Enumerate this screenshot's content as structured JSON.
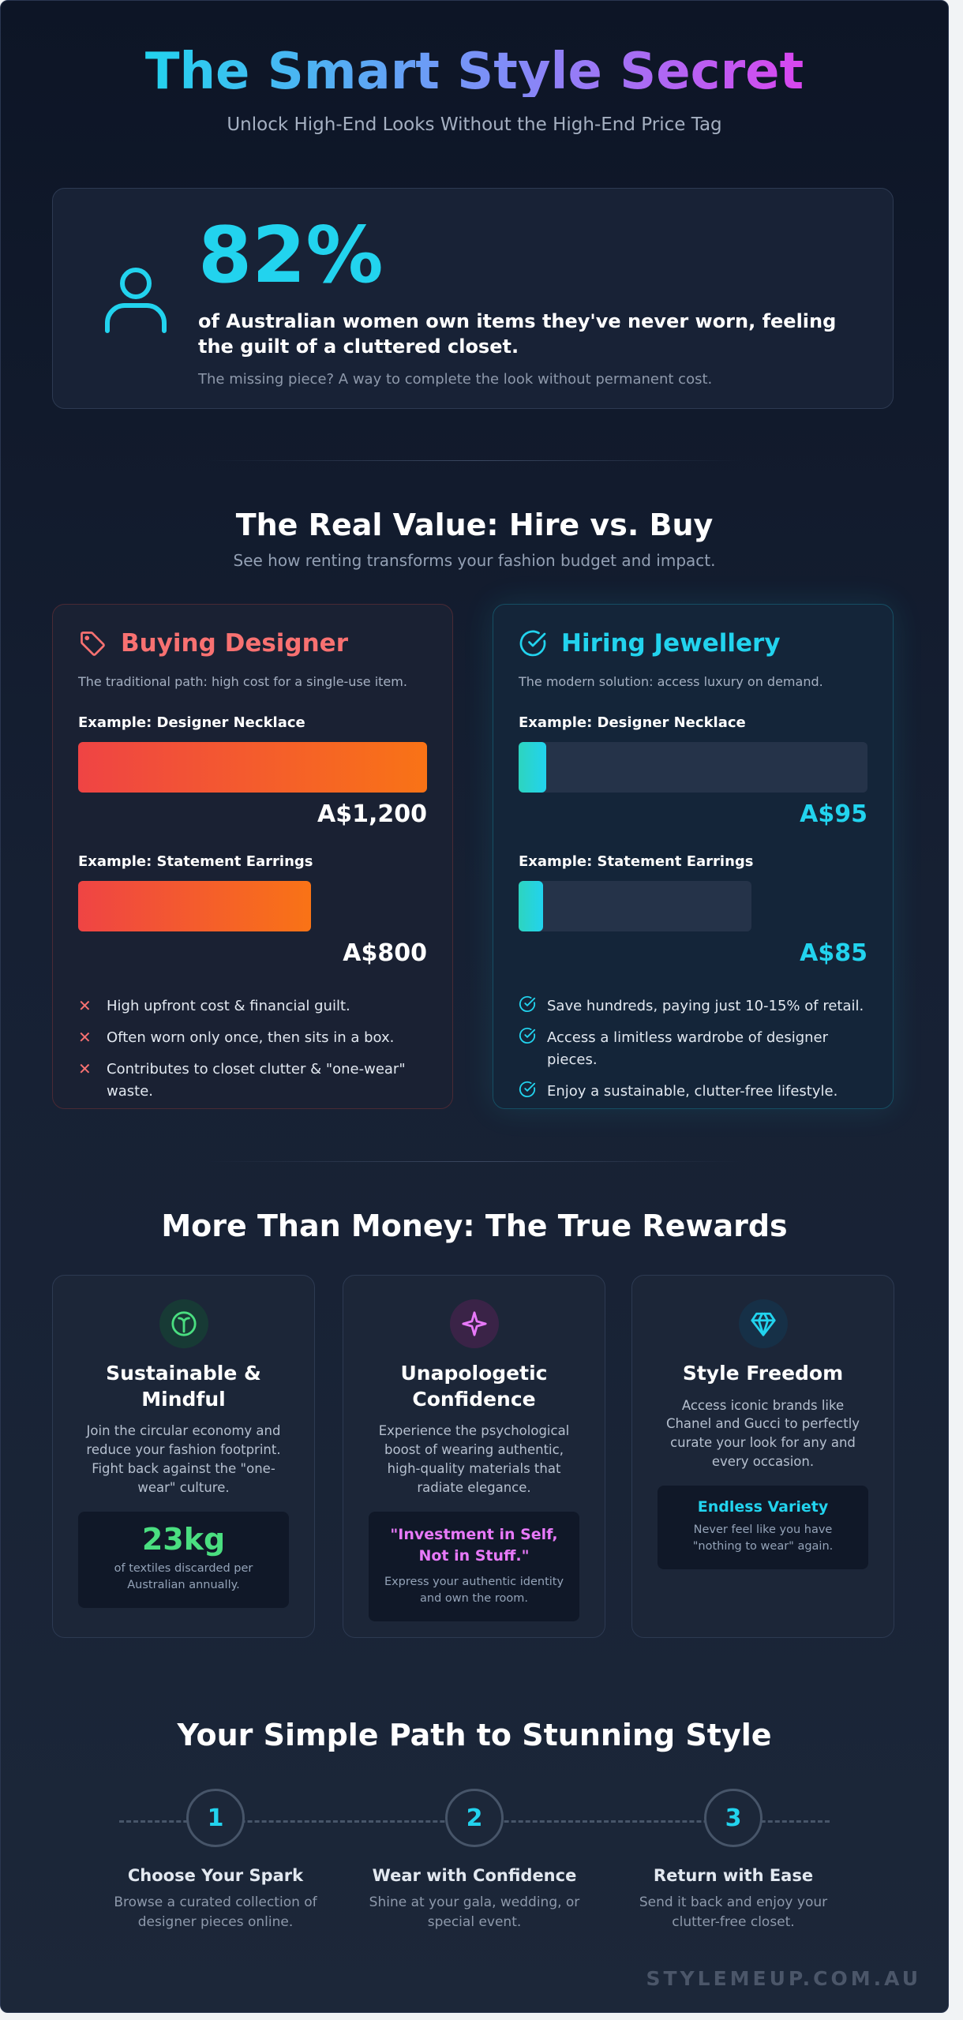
{
  "header": {
    "title": "The Smart Style Secret",
    "subtitle": "Unlock High-End Looks Without the High-End Price Tag"
  },
  "stat": {
    "icon": "person-icon",
    "number": "82%",
    "description": "of Australian women own items they've never worn, feeling the guilt of a cluttered closet.",
    "note": "The missing piece? A way to complete the look without permanent cost."
  },
  "comparison": {
    "title": "The Real Value: Hire vs. Buy",
    "subtitle": "See how renting transforms your fashion budget and impact.",
    "buy": {
      "icon": "tag-icon",
      "title": "Buying Designer",
      "description": "The traditional path: high cost for a single-use item.",
      "items": [
        {
          "label": "Example: Designer Necklace",
          "price": "A$1,200",
          "fill": 1.0,
          "track": 1.0
        },
        {
          "label": "Example: Statement Earrings",
          "price": "A$800",
          "fill": 0.667,
          "track": 0.667
        }
      ],
      "points": [
        "High upfront cost & financial guilt.",
        "Often worn only once, then sits in a box.",
        "Contributes to closet clutter & \"one-wear\" waste."
      ],
      "point_icon": "x-icon",
      "color": "#f87171"
    },
    "hire": {
      "icon": "check-circle-icon",
      "title": "Hiring Jewellery",
      "description": "The modern solution: access luxury on demand.",
      "items": [
        {
          "label": "Example: Designer Necklace",
          "price": "A$95",
          "fill": 0.079,
          "track": 1.0
        },
        {
          "label": "Example: Statement Earrings",
          "price": "A$85",
          "fill": 0.071,
          "track": 0.667
        }
      ],
      "points": [
        "Save hundreds, paying just 10-15% of retail.",
        "Access a limitless wardrobe of designer pieces.",
        "Enjoy a sustainable, clutter-free lifestyle."
      ],
      "point_icon": "check-circle-icon",
      "color": "#22d3ee"
    }
  },
  "rewards": {
    "title": "More Than Money: The True Rewards",
    "cards": [
      {
        "icon": "sprout-icon",
        "title": "Sustainable & Mindful",
        "description": "Join the circular economy and reduce your fashion footprint. Fight back against the \"one-wear\" culture.",
        "highlight": "23kg",
        "note": "of textiles discarded per Australian annually."
      },
      {
        "icon": "sparkle-icon",
        "title": "Unapologetic Confidence",
        "description": "Experience the psychological boost of wearing authentic, high-quality materials that radiate elegance.",
        "highlight": "\"Investment in Self, Not in Stuff.\"",
        "note": "Express your authentic identity and own the room."
      },
      {
        "icon": "gem-icon",
        "title": "Style Freedom",
        "description": "Access iconic brands like Chanel and Gucci to perfectly curate your look for any and every occasion.",
        "highlight": "Endless Variety",
        "note": "Never feel like you have \"nothing to wear\" again."
      }
    ]
  },
  "steps": {
    "title": "Your Simple Path to Stunning Style",
    "items": [
      {
        "number": "1",
        "title": "Choose Your Spark",
        "description": "Browse a curated collection of designer pieces online."
      },
      {
        "number": "2",
        "title": "Wear with Confidence",
        "description": "Shine at your gala, wedding, or special event."
      },
      {
        "number": "3",
        "title": "Return with Ease",
        "description": "Send it back and enjoy your clutter-free closet."
      }
    ]
  },
  "footer": {
    "brand": "STYLEMEUP.COM.AU"
  }
}
